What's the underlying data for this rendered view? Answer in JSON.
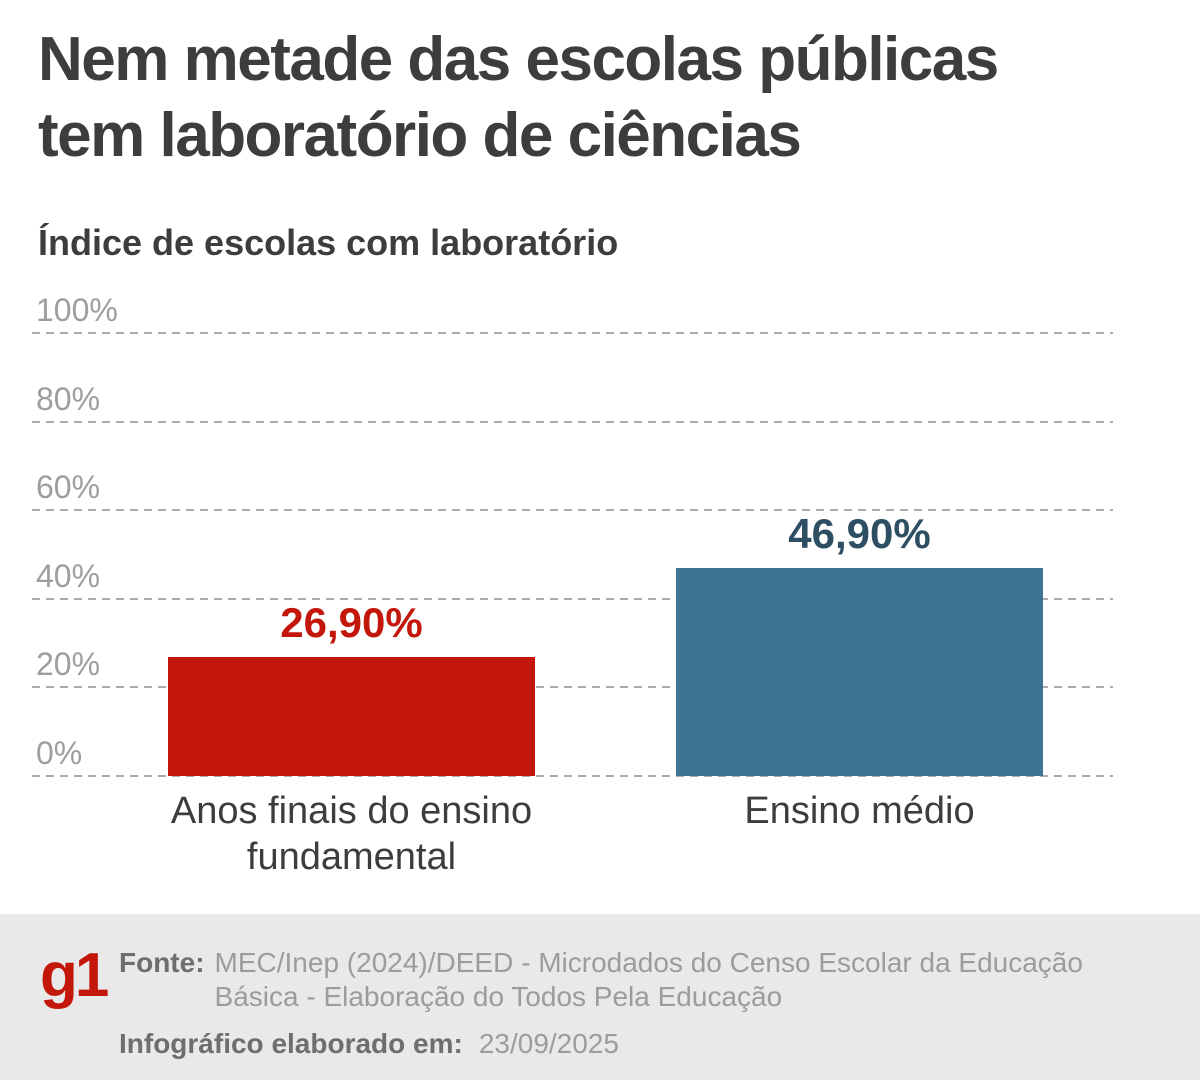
{
  "header": {
    "title_line1": "Nem metade das escolas públicas",
    "title_line2": "tem laboratório de ciências",
    "subtitle": "Índice de escolas com laboratório"
  },
  "chart_data": {
    "type": "bar",
    "title": "Índice de escolas com laboratório",
    "categories": [
      "Anos finais do ensino fundamental",
      "Ensino médio"
    ],
    "values": [
      26.9,
      46.9
    ],
    "value_labels": [
      "26,90%",
      "46,90%"
    ],
    "bar_colors": [
      "#c4170c",
      "#3e7491"
    ],
    "value_label_colors": [
      "#c4170c",
      "#2d4e63"
    ],
    "ylim": [
      0,
      100
    ],
    "yticks": [
      0,
      20,
      40,
      60,
      80,
      100
    ],
    "ytick_labels": [
      "0%",
      "20%",
      "40%",
      "60%",
      "80%",
      "100%"
    ],
    "grid": "horizontal dashed",
    "xlabel": "",
    "ylabel": ""
  },
  "footer": {
    "logo": "g1",
    "source_label": "Fonte:",
    "source_line1": "MEC/Inep (2024)/DEED - Microdados do Censo Escolar da Educação",
    "source_line2": "Básica - Elaboração do Todos Pela Educação",
    "date_label": "Infográfico elaborado em:",
    "date_value": "23/09/2025"
  }
}
